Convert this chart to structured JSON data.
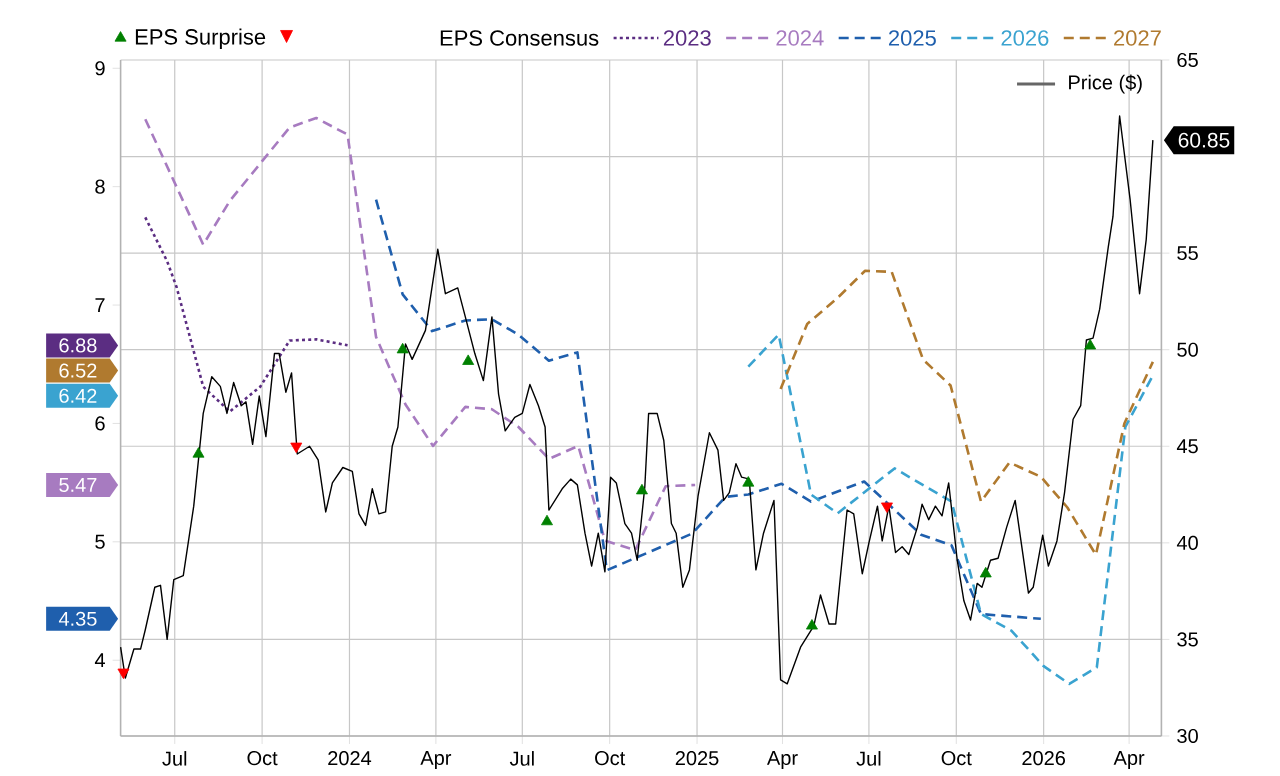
{
  "chart_data": {
    "type": "line",
    "legend_title": "EPS Consensus",
    "xlim": [
      "2023-05-05",
      "2026-05-05"
    ],
    "xticks": [
      {
        "value": "2023-07-01",
        "label": "Jul"
      },
      {
        "value": "2023-10-01",
        "label": "Oct"
      },
      {
        "value": "2024-01-01",
        "label": "2024"
      },
      {
        "value": "2024-04-01",
        "label": "Apr"
      },
      {
        "value": "2024-07-01",
        "label": "Jul"
      },
      {
        "value": "2024-10-01",
        "label": "Oct"
      },
      {
        "value": "2025-01-01",
        "label": "2025"
      },
      {
        "value": "2025-04-01",
        "label": "Apr"
      },
      {
        "value": "2025-07-01",
        "label": "Jul"
      },
      {
        "value": "2025-10-01",
        "label": "Oct"
      },
      {
        "value": "2026-01-01",
        "label": "2026"
      },
      {
        "value": "2026-04-01",
        "label": "Apr"
      }
    ],
    "ylim": [
      3.36,
      9.07
    ],
    "yticks": [
      4,
      5,
      6,
      7,
      8,
      9
    ],
    "y2lim": [
      30,
      65
    ],
    "y2ticks": [
      30,
      35,
      40,
      45,
      50,
      55,
      {
        "value": 60,
        "label": null
      },
      65
    ],
    "grid": true,
    "legend": "top",
    "series": [
      {
        "name": "2023",
        "color": "#5b2d82",
        "line_style": "dotted",
        "x": [
          "2023-05-31",
          "2023-06-23",
          "2023-07-03",
          "2023-07-31",
          "2023-08-28",
          "2023-09-29",
          "2023-10-30",
          "2023-11-27",
          "2023-12-30"
        ],
        "values": [
          7.74,
          7.37,
          7.15,
          6.31,
          6.1,
          6.31,
          6.7,
          6.71,
          6.66
        ]
      },
      {
        "name": "2024",
        "color": "#a77bc0",
        "line_style": "dashed",
        "x": [
          "2023-05-31",
          "2023-07-31",
          "2023-08-28",
          "2023-10-30",
          "2023-11-27",
          "2023-12-30",
          "2024-01-29",
          "2024-02-29",
          "2024-03-29",
          "2024-05-02",
          "2024-05-30",
          "2024-06-27",
          "2024-07-29",
          "2024-08-29",
          "2024-09-26",
          "2024-10-28",
          "2024-11-29",
          "2024-12-30"
        ],
        "values": [
          8.57,
          7.51,
          7.88,
          8.5,
          8.58,
          8.44,
          6.73,
          6.16,
          5.81,
          6.14,
          6.12,
          5.97,
          5.7,
          5.81,
          5.01,
          4.93,
          5.47,
          5.48
        ]
      },
      {
        "name": "2025",
        "color": "#1f5fad",
        "line_style": "dashed",
        "x": [
          "2024-01-29",
          "2024-02-26",
          "2024-03-28",
          "2024-05-02",
          "2024-05-30",
          "2024-06-27",
          "2024-07-29",
          "2024-08-28",
          "2024-09-28",
          "2024-12-27",
          "2025-01-31",
          "2025-02-24",
          "2025-03-31",
          "2025-05-01",
          "2025-06-26",
          "2025-08-25",
          "2025-09-26",
          "2025-10-27",
          "2025-12-29"
        ],
        "values": [
          7.89,
          7.09,
          6.78,
          6.87,
          6.88,
          6.75,
          6.53,
          6.6,
          4.76,
          5.07,
          5.38,
          5.4,
          5.49,
          5.34,
          5.51,
          5.06,
          4.97,
          4.39,
          4.35
        ]
      },
      {
        "name": "2026",
        "color": "#3aa3d0",
        "line_style": "dashed",
        "x": [
          "2025-02-24",
          "2025-03-28",
          "2025-05-01",
          "2025-05-29",
          "2025-07-28",
          "2025-09-26",
          "2025-10-27",
          "2025-11-28",
          "2026-01-01",
          "2026-01-28",
          "2026-02-26",
          "2026-03-28",
          "2026-04-27"
        ],
        "values": [
          6.48,
          6.75,
          5.4,
          5.24,
          5.62,
          5.34,
          4.39,
          4.25,
          3.95,
          3.8,
          3.94,
          5.97,
          6.42
        ]
      },
      {
        "name": "2027",
        "color": "#b07a2f",
        "line_style": "dashed",
        "x": [
          "2025-03-30",
          "2025-04-27",
          "2025-05-29",
          "2025-06-27",
          "2025-07-25",
          "2025-08-27",
          "2025-09-25",
          "2025-10-27",
          "2025-11-26",
          "2025-12-29",
          "2026-01-26",
          "2026-02-25",
          "2026-03-27",
          "2026-04-26"
        ],
        "values": [
          6.29,
          6.84,
          7.06,
          7.29,
          7.28,
          6.54,
          6.32,
          5.34,
          5.67,
          5.55,
          5.29,
          4.89,
          6.0,
          6.52
        ]
      },
      {
        "name": "Price ($)",
        "color": "#000000",
        "axis": "y2",
        "line_style": "solid",
        "x": [
          "2023-05-05",
          "2023-05-10",
          "2023-05-19",
          "2023-05-26",
          "2023-05-31",
          "2023-06-10",
          "2023-06-16",
          "2023-06-23",
          "2023-06-30",
          "2023-07-10",
          "2023-07-21",
          "2023-07-31",
          "2023-08-09",
          "2023-08-18",
          "2023-08-25",
          "2023-09-01",
          "2023-09-09",
          "2023-09-14",
          "2023-09-21",
          "2023-09-28",
          "2023-10-05",
          "2023-10-14",
          "2023-10-19",
          "2023-10-26",
          "2023-11-01",
          "2023-11-07",
          "2023-11-20",
          "2023-11-29",
          "2023-12-07",
          "2023-12-14",
          "2023-12-25",
          "2024-01-04",
          "2024-01-11",
          "2024-01-18",
          "2024-01-25",
          "2024-02-01",
          "2024-02-08",
          "2024-02-15",
          "2024-02-21",
          "2024-02-29",
          "2024-03-07",
          "2024-03-21",
          "2024-04-03",
          "2024-04-11",
          "2024-04-24",
          "2024-05-02",
          "2024-05-12",
          "2024-05-21",
          "2024-05-30",
          "2024-06-06",
          "2024-06-13",
          "2024-06-23",
          "2024-07-01",
          "2024-07-09",
          "2024-07-18",
          "2024-07-25",
          "2024-07-29",
          "2024-08-12",
          "2024-08-21",
          "2024-08-28",
          "2024-09-05",
          "2024-09-12",
          "2024-09-19",
          "2024-09-26",
          "2024-10-02",
          "2024-10-08",
          "2024-10-17",
          "2024-10-24",
          "2024-10-30",
          "2024-11-07",
          "2024-11-11",
          "2024-11-20",
          "2024-11-27",
          "2024-12-05",
          "2024-12-10",
          "2024-12-17",
          "2024-12-24",
          "2025-01-02",
          "2025-01-14",
          "2025-01-23",
          "2025-01-29",
          "2025-02-04",
          "2025-02-11",
          "2025-02-17",
          "2025-02-25",
          "2025-03-04",
          "2025-03-12",
          "2025-03-23",
          "2025-03-30",
          "2025-04-06",
          "2025-04-20",
          "2025-05-04",
          "2025-05-11",
          "2025-05-20",
          "2025-05-27",
          "2025-06-08",
          "2025-06-15",
          "2025-06-24",
          "2025-07-01",
          "2025-07-10",
          "2025-07-15",
          "2025-07-22",
          "2025-07-29",
          "2025-08-05",
          "2025-08-12",
          "2025-08-21",
          "2025-08-26",
          "2025-09-02",
          "2025-09-09",
          "2025-09-16",
          "2025-09-23",
          "2025-10-02",
          "2025-10-09",
          "2025-10-16",
          "2025-10-23",
          "2025-10-28",
          "2025-11-06",
          "2025-11-14",
          "2025-11-23",
          "2025-12-02",
          "2025-12-09",
          "2025-12-16",
          "2025-12-21",
          "2025-12-31",
          "2026-01-06",
          "2026-01-15",
          "2026-01-23",
          "2026-02-01",
          "2026-02-09",
          "2026-02-15",
          "2026-02-22",
          "2026-03-01",
          "2026-03-10",
          "2026-03-15",
          "2026-03-22",
          "2026-04-02",
          "2026-04-12",
          "2026-04-19",
          "2026-04-26"
        ],
        "values": [
          34.6,
          33.0,
          34.5,
          34.5,
          35.5,
          37.7,
          37.8,
          35.0,
          38.1,
          38.3,
          41.9,
          46.7,
          48.6,
          48.1,
          46.7,
          48.3,
          47.1,
          47.3,
          45.1,
          47.6,
          45.5,
          49.8,
          49.8,
          47.8,
          48.8,
          44.6,
          45.0,
          44.3,
          41.6,
          43.1,
          43.9,
          43.7,
          41.5,
          40.9,
          42.8,
          41.5,
          41.6,
          45.0,
          46.0,
          50.3,
          49.5,
          51.0,
          55.2,
          52.9,
          53.2,
          51.7,
          49.8,
          48.4,
          51.7,
          47.7,
          45.8,
          46.5,
          46.7,
          48.2,
          47.1,
          46.0,
          41.7,
          42.8,
          43.3,
          43.0,
          40.5,
          38.8,
          40.5,
          38.5,
          43.4,
          43.1,
          41.0,
          40.5,
          39.1,
          42.9,
          46.7,
          46.7,
          45.3,
          41.0,
          40.5,
          37.7,
          38.6,
          42.4,
          45.7,
          44.8,
          42.2,
          42.6,
          44.1,
          43.4,
          43.3,
          38.6,
          40.5,
          42.2,
          32.9,
          32.7,
          34.6,
          35.7,
          37.3,
          35.8,
          35.8,
          41.7,
          41.5,
          38.4,
          40.0,
          41.9,
          40.1,
          41.9,
          39.5,
          39.8,
          39.4,
          40.8,
          42.0,
          41.2,
          41.9,
          41.4,
          43.1,
          39.1,
          37.0,
          36.0,
          37.9,
          37.7,
          39.1,
          39.2,
          40.8,
          42.2,
          39.8,
          37.4,
          37.7,
          40.4,
          38.8,
          40.1,
          42.6,
          46.4,
          47.1,
          50.5,
          50.6,
          52.1,
          55.3,
          56.9,
          62.1,
          57.8,
          52.9,
          55.7,
          60.85
        ]
      },
      {
        "name": "EPS Surprise",
        "type": "scatter",
        "axis": "y2",
        "marker": "triangle",
        "color": "#008000",
        "x": [
          "2023-07-26",
          "2024-02-26",
          "2024-05-05",
          "2024-07-27",
          "2024-11-04",
          "2025-02-24",
          "2025-05-02",
          "2025-11-01",
          "2026-02-19"
        ],
        "values": [
          44.6,
          50.0,
          49.4,
          41.1,
          42.7,
          43.1,
          35.7,
          38.4,
          50.2
        ]
      },
      {
        "type": "scatter",
        "axis": "y2",
        "marker": "triangle-down",
        "color": "#ff0000",
        "x": [
          "2023-05-08",
          "2023-11-06",
          "2025-07-20"
        ],
        "values": [
          33.3,
          45.0,
          41.9
        ]
      }
    ],
    "annotations": [
      "6.88",
      "5.47",
      "4.35",
      "6.42",
      "6.52",
      "60.85"
    ]
  }
}
